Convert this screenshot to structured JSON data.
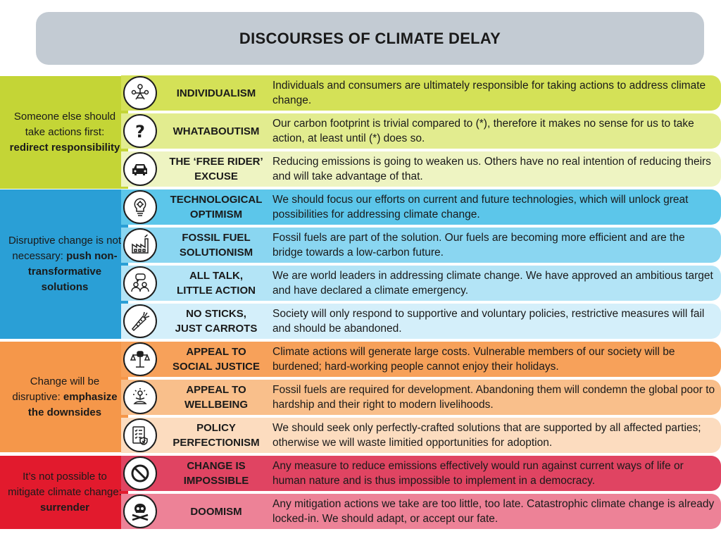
{
  "title": "DISCOURSES OF CLIMATE DELAY",
  "colors": {
    "green_side": "#c4d536",
    "green_row_1": "#d4e157",
    "green_row_2": "#e2ec8f",
    "green_row_3": "#eef4c2",
    "blue_side": "#2a9fd6",
    "blue_row_1": "#5cc6ea",
    "blue_row_2": "#8ad6f1",
    "blue_row_3": "#b3e4f6",
    "blue_row_4": "#d4effa",
    "orange_side": "#f5974a",
    "orange_row_1": "#f7a15a",
    "orange_row_2": "#f9bf8b",
    "orange_row_3": "#fcdcbf",
    "red_side": "#e21a2d",
    "red_row_1": "#e04462",
    "red_row_2": "#ed8297"
  },
  "groups": [
    {
      "lead": "Someone else should take actions first:",
      "emphasis": "redirect responsibility",
      "items": [
        {
          "icon": "people-network-icon",
          "name": "INDIVIDUALISM",
          "description": "Individuals and consumers are ultimately responsible for taking actions to address climate change."
        },
        {
          "icon": "question-mark-icon",
          "name": "WHATABOUTISM",
          "description": "Our carbon footprint is trivial compared to (*), therefore it makes no sense for us to take action, at least until (*) does so."
        },
        {
          "icon": "car-icon",
          "name": "THE ‘FREE RIDER’\nEXCUSE",
          "description": "Reducing emissions is going to weaken us. Others have no real intention of reducing theirs and will take advantage of that."
        }
      ]
    },
    {
      "lead": "Disruptive change is not necessary:",
      "emphasis": "push non-transformative solutions",
      "items": [
        {
          "icon": "lightbulb-gears-icon",
          "name": "TECHNOLOGICAL\nOPTIMISM",
          "description": "We should focus our efforts on current and future technologies, which will unlock great possibilities for addressing climate change."
        },
        {
          "icon": "factory-icon",
          "name": "FOSSIL FUEL\nSOLUTIONISM",
          "description": "Fossil fuels are part of the solution. Our fuels are becoming more efficient and are the bridge towards a low-carbon future."
        },
        {
          "icon": "talking-people-icon",
          "name": "ALL TALK,\nLITTLE ACTION",
          "description": "We are world leaders in addressing climate change. We have approved an ambitious target and have declared a climate emergency."
        },
        {
          "icon": "carrot-icon",
          "name": "NO STICKS,\nJUST CARROTS",
          "description": "Society will only respond to supportive and voluntary policies, restrictive measures will fail and should be abandoned."
        }
      ]
    },
    {
      "lead": "Change will be disruptive:",
      "emphasis": "emphasize the downsides",
      "items": [
        {
          "icon": "justice-fist-icon",
          "name": "APPEAL TO\nSOCIAL JUSTICE",
          "description": "Climate actions will generate large costs. Vulnerable members of our society will be burdened; hard-working people cannot enjoy their holidays."
        },
        {
          "icon": "meditating-person-icon",
          "name": "APPEAL TO\nWELLBEING",
          "description": "Fossil fuels are required for development. Abandoning them will condemn the global poor to hardship and their right to modern livelihoods."
        },
        {
          "icon": "checklist-icon",
          "name": "POLICY\nPERFECTIONISM",
          "description": "We should seek only perfectly-crafted solutions that are supported by all affected parties; otherwise we will waste limitied opportunities for adoption."
        }
      ]
    },
    {
      "lead": "It’s not possible to mitigate climate change:",
      "emphasis": "surrender",
      "items": [
        {
          "icon": "prohibited-icon",
          "name": "CHANGE IS\nIMPOSSIBLE",
          "description": "Any measure to reduce emissions effectively would run against current ways of life or human nature and is thus impossible to implement in a democracy."
        },
        {
          "icon": "skull-crossbones-icon",
          "name": "DOOMISM",
          "description": "Any mitigation actions we take are too little, too late. Catastrophic climate change is already locked-in. We should adapt, or accept our fate."
        }
      ]
    }
  ]
}
